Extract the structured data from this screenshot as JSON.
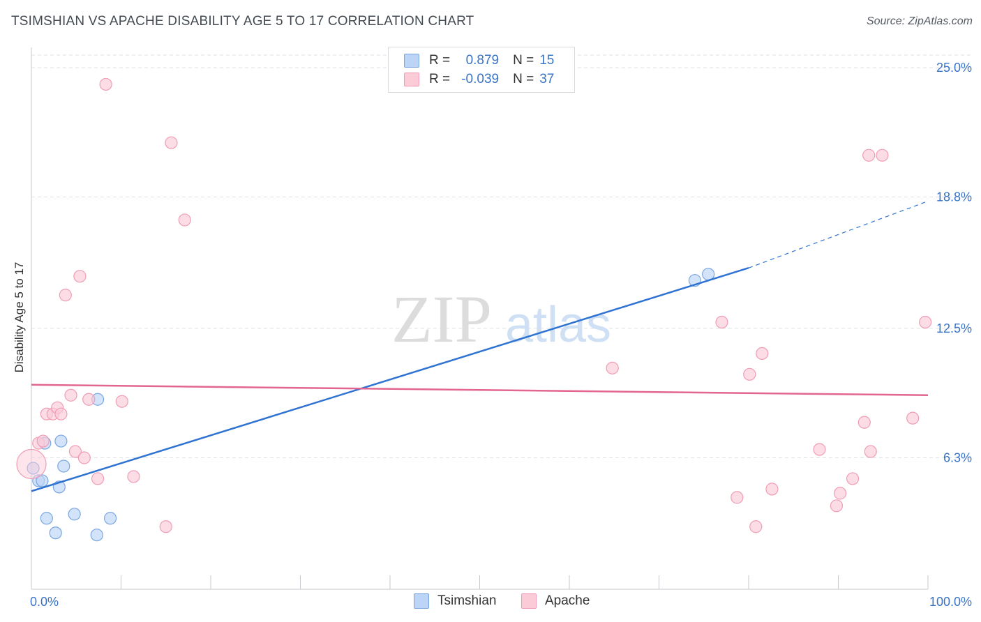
{
  "title": "TSIMSHIAN VS APACHE DISABILITY AGE 5 TO 17 CORRELATION CHART",
  "source": "Source: ZipAtlas.com",
  "watermark": {
    "zip": "ZIP",
    "atlas": "atlas"
  },
  "legend": {
    "tsimshian": {
      "r_label": "R =",
      "r_value": "0.879",
      "n_label": "N =",
      "n_value": "15"
    },
    "apache": {
      "r_label": "R =",
      "r_value": "-0.039",
      "n_label": "N =",
      "n_value": "37"
    }
  },
  "colors": {
    "tsimshian_fill": "#bcd4f6",
    "tsimshian_stroke": "#7aa7e0",
    "tsimshian_line": "#2f73d2",
    "apache_fill": "#fbcbd8",
    "apache_stroke": "#ef9db4",
    "apache_line": "#e2668f",
    "value_text": "#3a73c8"
  },
  "chart_data": {
    "type": "scatter",
    "title": "TSIMSHIAN VS APACHE DISABILITY AGE 5 TO 17 CORRELATION CHART",
    "xlabel": "",
    "ylabel": "Disability Age 5 to 17",
    "xlim": [
      0,
      100
    ],
    "ylim": [
      0,
      25.5
    ],
    "x_tick_labels": [
      "0.0%",
      "100.0%"
    ],
    "y_ticks": [
      6.3,
      12.5,
      18.8,
      25.0
    ],
    "y_tick_labels": [
      "6.3%",
      "12.5%",
      "18.8%",
      "25.0%"
    ],
    "grid": "horizontal dashed",
    "series": [
      {
        "name": "Tsimshian",
        "points": [
          {
            "x": 0.2,
            "y": 5.8
          },
          {
            "x": 0.8,
            "y": 5.2
          },
          {
            "x": 1.2,
            "y": 5.2
          },
          {
            "x": 1.5,
            "y": 7.0
          },
          {
            "x": 1.7,
            "y": 3.4
          },
          {
            "x": 2.7,
            "y": 2.7
          },
          {
            "x": 3.1,
            "y": 4.9
          },
          {
            "x": 3.3,
            "y": 7.1
          },
          {
            "x": 3.6,
            "y": 5.9
          },
          {
            "x": 4.8,
            "y": 3.6
          },
          {
            "x": 7.3,
            "y": 2.6
          },
          {
            "x": 8.8,
            "y": 3.4
          },
          {
            "x": 7.4,
            "y": 9.1
          },
          {
            "x": 74.0,
            "y": 14.8
          },
          {
            "x": 75.5,
            "y": 15.1
          }
        ],
        "trend": {
          "x1": 0,
          "y1": 4.7,
          "x2": 80,
          "y2": 15.4,
          "dashed_to_x": 100,
          "dashed_to_y": 18.6
        }
      },
      {
        "name": "Apache",
        "points": [
          {
            "x": 0.0,
            "y": 6.0
          },
          {
            "x": 0.8,
            "y": 7.0
          },
          {
            "x": 1.3,
            "y": 7.1
          },
          {
            "x": 1.7,
            "y": 8.4
          },
          {
            "x": 2.4,
            "y": 8.4
          },
          {
            "x": 2.9,
            "y": 8.7
          },
          {
            "x": 3.3,
            "y": 8.4
          },
          {
            "x": 3.8,
            "y": 14.1
          },
          {
            "x": 4.4,
            "y": 9.3
          },
          {
            "x": 4.9,
            "y": 6.6
          },
          {
            "x": 5.4,
            "y": 15.0
          },
          {
            "x": 5.9,
            "y": 6.3
          },
          {
            "x": 6.4,
            "y": 9.1
          },
          {
            "x": 7.4,
            "y": 5.3
          },
          {
            "x": 8.3,
            "y": 24.2
          },
          {
            "x": 10.1,
            "y": 9.0
          },
          {
            "x": 11.4,
            "y": 5.4
          },
          {
            "x": 15.0,
            "y": 3.0
          },
          {
            "x": 15.6,
            "y": 21.4
          },
          {
            "x": 17.1,
            "y": 17.7
          },
          {
            "x": 64.8,
            "y": 10.6
          },
          {
            "x": 77.0,
            "y": 12.8
          },
          {
            "x": 78.7,
            "y": 4.4
          },
          {
            "x": 80.1,
            "y": 10.3
          },
          {
            "x": 80.8,
            "y": 3.0
          },
          {
            "x": 81.5,
            "y": 11.3
          },
          {
            "x": 82.6,
            "y": 4.8
          },
          {
            "x": 87.9,
            "y": 6.7
          },
          {
            "x": 89.8,
            "y": 4.0
          },
          {
            "x": 90.2,
            "y": 4.6
          },
          {
            "x": 91.6,
            "y": 5.3
          },
          {
            "x": 92.9,
            "y": 8.0
          },
          {
            "x": 93.4,
            "y": 20.8
          },
          {
            "x": 93.6,
            "y": 6.6
          },
          {
            "x": 94.9,
            "y": 20.8
          },
          {
            "x": 98.3,
            "y": 8.2
          },
          {
            "x": 99.7,
            "y": 12.8
          }
        ],
        "trend": {
          "x1": 0,
          "y1": 9.8,
          "x2": 100,
          "y2": 9.3
        }
      }
    ]
  }
}
